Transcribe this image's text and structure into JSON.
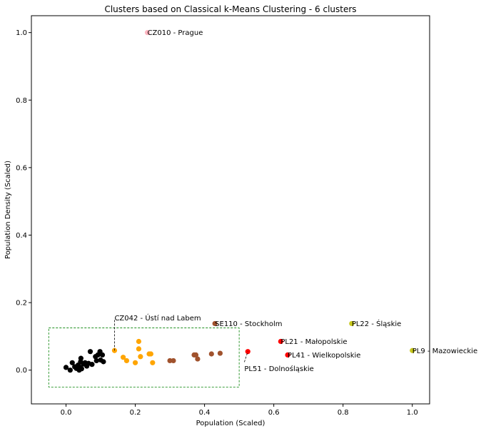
{
  "chart_data": {
    "type": "scatter",
    "title": "Clusters based on Classical k-Means Clustering - 6 clusters",
    "xlabel": "Population (Scaled)",
    "ylabel": "Population Density (Scaled)",
    "xlim": [
      -0.1,
      1.05
    ],
    "ylim": [
      -0.1,
      1.05
    ],
    "xticks": [
      "0.0",
      "0.2",
      "0.4",
      "0.6",
      "0.8",
      "1.0"
    ],
    "yticks": [
      "0.0",
      "0.2",
      "0.4",
      "0.6",
      "0.8",
      "1.0"
    ],
    "grid": false,
    "cluster_colors": [
      "#000000",
      "#ffa500",
      "#a0522d",
      "#ff0000",
      "#c8c81e",
      "#ffb6c1"
    ],
    "points": [
      {
        "x": 0.0,
        "y": 0.008,
        "c": 0
      },
      {
        "x": 0.012,
        "y": 0.0,
        "c": 0
      },
      {
        "x": 0.018,
        "y": 0.022,
        "c": 0
      },
      {
        "x": 0.025,
        "y": 0.01,
        "c": 0
      },
      {
        "x": 0.03,
        "y": 0.005,
        "c": 0
      },
      {
        "x": 0.035,
        "y": 0.015,
        "c": 0
      },
      {
        "x": 0.038,
        "y": 0.0,
        "c": 0
      },
      {
        "x": 0.04,
        "y": 0.008,
        "c": 0
      },
      {
        "x": 0.042,
        "y": 0.025,
        "c": 0
      },
      {
        "x": 0.043,
        "y": 0.035,
        "c": 0
      },
      {
        "x": 0.045,
        "y": 0.004,
        "c": 0
      },
      {
        "x": 0.05,
        "y": 0.018,
        "c": 0
      },
      {
        "x": 0.055,
        "y": 0.022,
        "c": 0
      },
      {
        "x": 0.06,
        "y": 0.012,
        "c": 0
      },
      {
        "x": 0.065,
        "y": 0.02,
        "c": 0
      },
      {
        "x": 0.07,
        "y": 0.055,
        "c": 0
      },
      {
        "x": 0.075,
        "y": 0.017,
        "c": 0
      },
      {
        "x": 0.085,
        "y": 0.04,
        "c": 0
      },
      {
        "x": 0.088,
        "y": 0.028,
        "c": 0
      },
      {
        "x": 0.092,
        "y": 0.045,
        "c": 0
      },
      {
        "x": 0.098,
        "y": 0.055,
        "c": 0
      },
      {
        "x": 0.1,
        "y": 0.03,
        "c": 0
      },
      {
        "x": 0.105,
        "y": 0.045,
        "c": 0
      },
      {
        "x": 0.108,
        "y": 0.025,
        "c": 0
      },
      {
        "x": 0.14,
        "y": 0.058,
        "c": 1
      },
      {
        "x": 0.165,
        "y": 0.038,
        "c": 1
      },
      {
        "x": 0.175,
        "y": 0.028,
        "c": 1
      },
      {
        "x": 0.2,
        "y": 0.022,
        "c": 1
      },
      {
        "x": 0.21,
        "y": 0.085,
        "c": 1
      },
      {
        "x": 0.21,
        "y": 0.063,
        "c": 1
      },
      {
        "x": 0.215,
        "y": 0.04,
        "c": 1
      },
      {
        "x": 0.24,
        "y": 0.048,
        "c": 1
      },
      {
        "x": 0.245,
        "y": 0.048,
        "c": 1
      },
      {
        "x": 0.25,
        "y": 0.022,
        "c": 1
      },
      {
        "x": 0.3,
        "y": 0.028,
        "c": 2
      },
      {
        "x": 0.31,
        "y": 0.028,
        "c": 2
      },
      {
        "x": 0.37,
        "y": 0.045,
        "c": 2
      },
      {
        "x": 0.375,
        "y": 0.045,
        "c": 2
      },
      {
        "x": 0.38,
        "y": 0.033,
        "c": 2
      },
      {
        "x": 0.42,
        "y": 0.048,
        "c": 2
      },
      {
        "x": 0.43,
        "y": 0.138,
        "c": 2
      },
      {
        "x": 0.445,
        "y": 0.05,
        "c": 2
      },
      {
        "x": 0.525,
        "y": 0.055,
        "c": 3
      },
      {
        "x": 0.62,
        "y": 0.085,
        "c": 3
      },
      {
        "x": 0.64,
        "y": 0.045,
        "c": 3
      },
      {
        "x": 0.825,
        "y": 0.138,
        "c": 4
      },
      {
        "x": 1.0,
        "y": 0.058,
        "c": 4
      },
      {
        "x": 0.235,
        "y": 1.0,
        "c": 5
      }
    ],
    "annotations": [
      {
        "text": "CZ010 - Prague",
        "x": 0.235,
        "y": 1.0,
        "tx": 0.235,
        "ty": 1.0,
        "leader": false
      },
      {
        "text": "CZ042 - Ústí nad Labem",
        "x": 0.14,
        "y": 0.058,
        "tx": 0.14,
        "ty": 0.155,
        "leader": true
      },
      {
        "text": "SE110 - Stockholm",
        "x": 0.43,
        "y": 0.138,
        "tx": 0.43,
        "ty": 0.138,
        "leader": false
      },
      {
        "text": "PL22 - Śląskie",
        "x": 0.825,
        "y": 0.138,
        "tx": 0.825,
        "ty": 0.138,
        "leader": false
      },
      {
        "text": "PL21 - Małopolskie",
        "x": 0.62,
        "y": 0.085,
        "tx": 0.62,
        "ty": 0.085,
        "leader": false
      },
      {
        "text": "PL9 - Mazowieckie",
        "x": 1.0,
        "y": 0.058,
        "tx": 1.0,
        "ty": 0.058,
        "leader": false
      },
      {
        "text": "PL41 - Wielkopolskie",
        "x": 0.64,
        "y": 0.045,
        "tx": 0.64,
        "ty": 0.045,
        "leader": false
      },
      {
        "text": "PL51 - Dolnośląskie",
        "x": 0.525,
        "y": 0.055,
        "tx": 0.515,
        "ty": 0.005,
        "leader": true
      }
    ],
    "inset_box": {
      "x0": -0.05,
      "x1": 0.5,
      "y0": -0.05,
      "y1": 0.125,
      "color": "#008000"
    }
  }
}
